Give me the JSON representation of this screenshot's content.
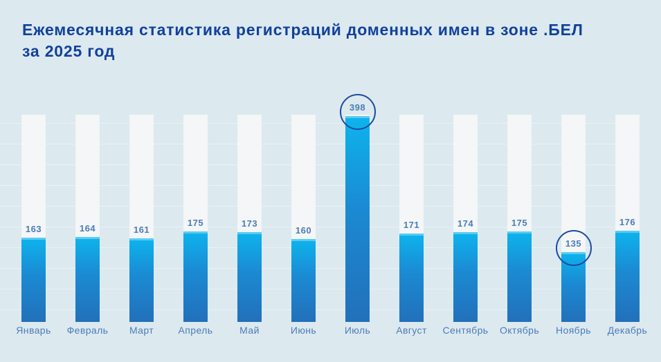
{
  "page": {
    "background_color": "#dce9ef"
  },
  "title": {
    "text": "Ежемесячная статистика регистраций доменных имен в зоне .БЕЛ за 2025 год",
    "lines": [
      "Ежемесячная статистика регистраций доменных имен в зоне .БЕЛ",
      "за 2025 год"
    ],
    "color": "#11419b"
  },
  "chart_data": {
    "type": "bar",
    "title": "Ежемесячная статистика регистраций доменных имен в зоне .БЕЛ за 2025 год",
    "categories": [
      "Январь",
      "Февраль",
      "Март",
      "Апрель",
      "Май",
      "Июнь",
      "Июль",
      "Август",
      "Сентябрь",
      "Октябрь",
      "Ноябрь",
      "Декабрь"
    ],
    "values": [
      163,
      164,
      161,
      175,
      173,
      160,
      398,
      171,
      174,
      175,
      135,
      176
    ],
    "xlabel": "",
    "ylabel": "",
    "ylim": [
      0,
      400
    ],
    "grid": "horizontal, faint lines, no tick labels",
    "legend": "none",
    "data_labels": "value shown above each bar",
    "highlighted_indices": [
      6,
      10
    ],
    "highlight_note": "July (max 398) and November (min 135) are circled",
    "colors": {
      "bar_track": "#f4f6f7",
      "bar_fill_top": "#0db4ee",
      "bar_fill_bottom": "#2270ba",
      "gridline": "#e9f2f6",
      "label": "#4b7cb8",
      "highlight_circle": "#1c4a9e"
    }
  }
}
